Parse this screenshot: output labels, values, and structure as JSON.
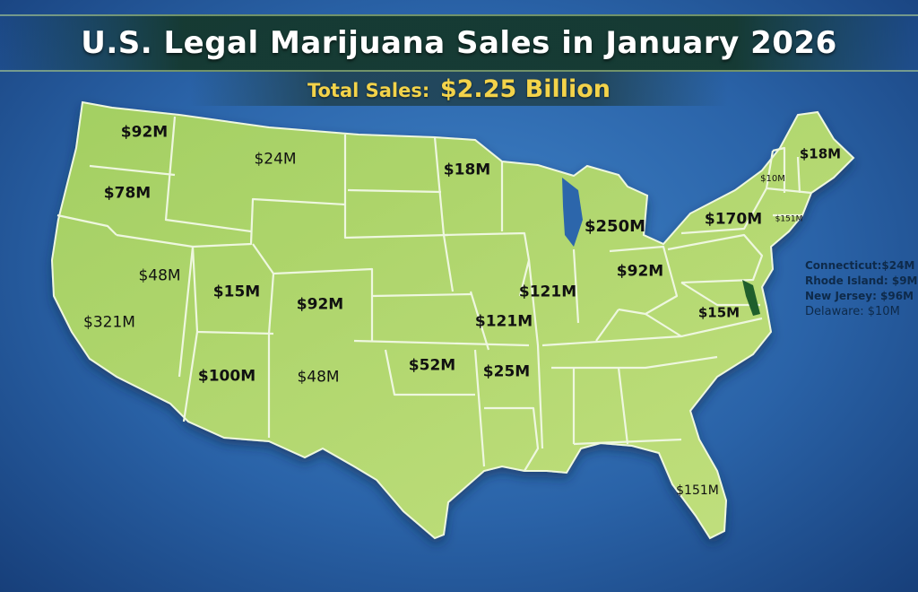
{
  "title": "U.S. Legal Marijuana Sales in January 2026",
  "subtitle": {
    "label": "Total Sales:",
    "value": "$2.25 Billion"
  },
  "colors": {
    "ocean": "#2a63a8",
    "land": "#b2d86a",
    "land_dark": "#8cc04e",
    "border": "#eef7df",
    "title_text": "#ffffff",
    "subtitle_text": "#f3d34a"
  },
  "states": [
    {
      "state": "Washington",
      "label": "$92M"
    },
    {
      "state": "Oregon",
      "label": "$78M"
    },
    {
      "state": "Montana",
      "label": "$24M"
    },
    {
      "state": "Minnesota",
      "label": "$18M"
    },
    {
      "state": "Maine",
      "label": "$18M"
    },
    {
      "state": "Vermont",
      "label": "$10M"
    },
    {
      "state": "Michigan",
      "label": "$250M"
    },
    {
      "state": "New York",
      "label": "$170M"
    },
    {
      "state": "Massachusetts",
      "label": "$151M"
    },
    {
      "state": "Nevada",
      "label": "$48M"
    },
    {
      "state": "Utah",
      "label": "$15M"
    },
    {
      "state": "Colorado",
      "label": "$92M"
    },
    {
      "state": "Illinois",
      "label": "$121M"
    },
    {
      "state": "Ohio",
      "label": "$92M"
    },
    {
      "state": "California",
      "label": "$321M"
    },
    {
      "state": "Missouri",
      "label": "$121M"
    },
    {
      "state": "Virginia",
      "label": "$15M"
    },
    {
      "state": "Arizona",
      "label": "$100M"
    },
    {
      "state": "New Mexico",
      "label": "$48M"
    },
    {
      "state": "Oklahoma",
      "label": "$52M"
    },
    {
      "state": "Arkansas",
      "label": "$25M"
    },
    {
      "state": "Florida",
      "label": "$151M"
    }
  ],
  "side_notes": [
    "Connecticut:$24M",
    "Rhode Island: $9M",
    "New Jersey: $96M",
    "Delaware: $10M"
  ]
}
